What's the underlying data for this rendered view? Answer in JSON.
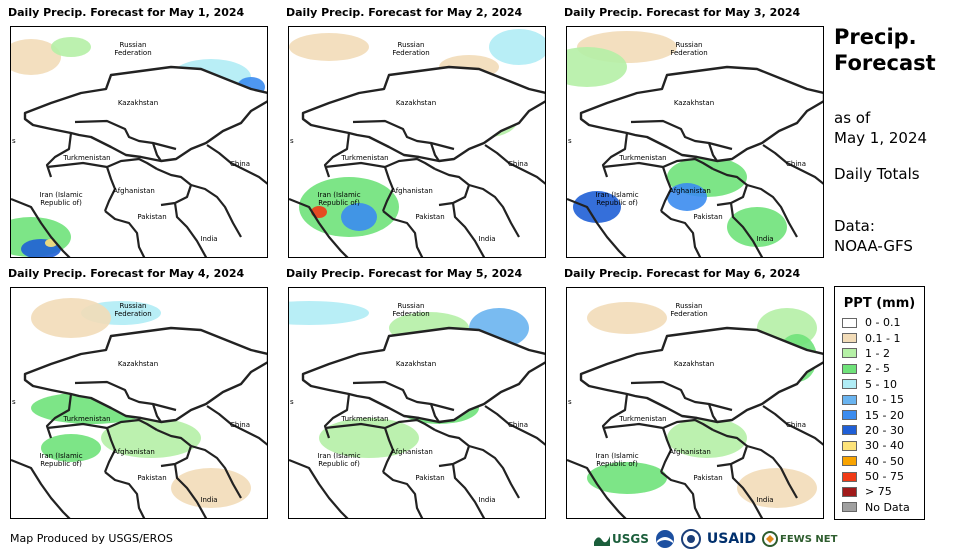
{
  "panels": [
    {
      "title": "Daily Precip. Forecast for May 1, 2024"
    },
    {
      "title": "Daily Precip. Forecast for May 2, 2024"
    },
    {
      "title": "Daily Precip. Forecast for May 3, 2024"
    },
    {
      "title": "Daily Precip. Forecast for May 4, 2024"
    },
    {
      "title": "Daily Precip. Forecast for May 5, 2024"
    },
    {
      "title": "Daily Precip. Forecast for May 6, 2024"
    }
  ],
  "map_labels": {
    "russia": "Russian\nFederation",
    "kazakhstan": "Kazakhstan",
    "turkmenistan": "Turkmenistan",
    "china": "China",
    "iran": "Iran  (Islamic\nRepublic of)",
    "afghanistan": "Afghanistan",
    "pakistan": "Pakistan",
    "india": "India",
    "s_marker": "s"
  },
  "side": {
    "title": "Precip.\nForecast",
    "asof_label": "as of",
    "asof_date": "May 1, 2024",
    "totals": "Daily Totals",
    "data_label": "Data:",
    "data_source": "NOAA-GFS"
  },
  "legend": {
    "title": "PPT (mm)",
    "items": [
      {
        "label": "0 - 0.1",
        "color": "#ffffff"
      },
      {
        "label": "0.1 - 1",
        "color": "#f2dcb8"
      },
      {
        "label": "1 - 2",
        "color": "#b5f0a6"
      },
      {
        "label": "2 - 5",
        "color": "#6fe27a"
      },
      {
        "label": "5 - 10",
        "color": "#b0ecf5"
      },
      {
        "label": "10 - 15",
        "color": "#6ab4f0"
      },
      {
        "label": "15 - 20",
        "color": "#3b8cef"
      },
      {
        "label": "20 - 30",
        "color": "#1f5fd6"
      },
      {
        "label": "30 - 40",
        "color": "#fde37a"
      },
      {
        "label": "40 - 50",
        "color": "#f8a300"
      },
      {
        "label": "50 - 75",
        "color": "#f03a16"
      },
      {
        "label": "> 75",
        "color": "#a01a1a"
      },
      {
        "label": "No Data",
        "color": "#a0a0a0"
      }
    ]
  },
  "footer": {
    "credit": "Map Produced by USGS/EROS",
    "usgs": "USGS",
    "usaid": "USAID",
    "fews": "FEWS NET"
  }
}
